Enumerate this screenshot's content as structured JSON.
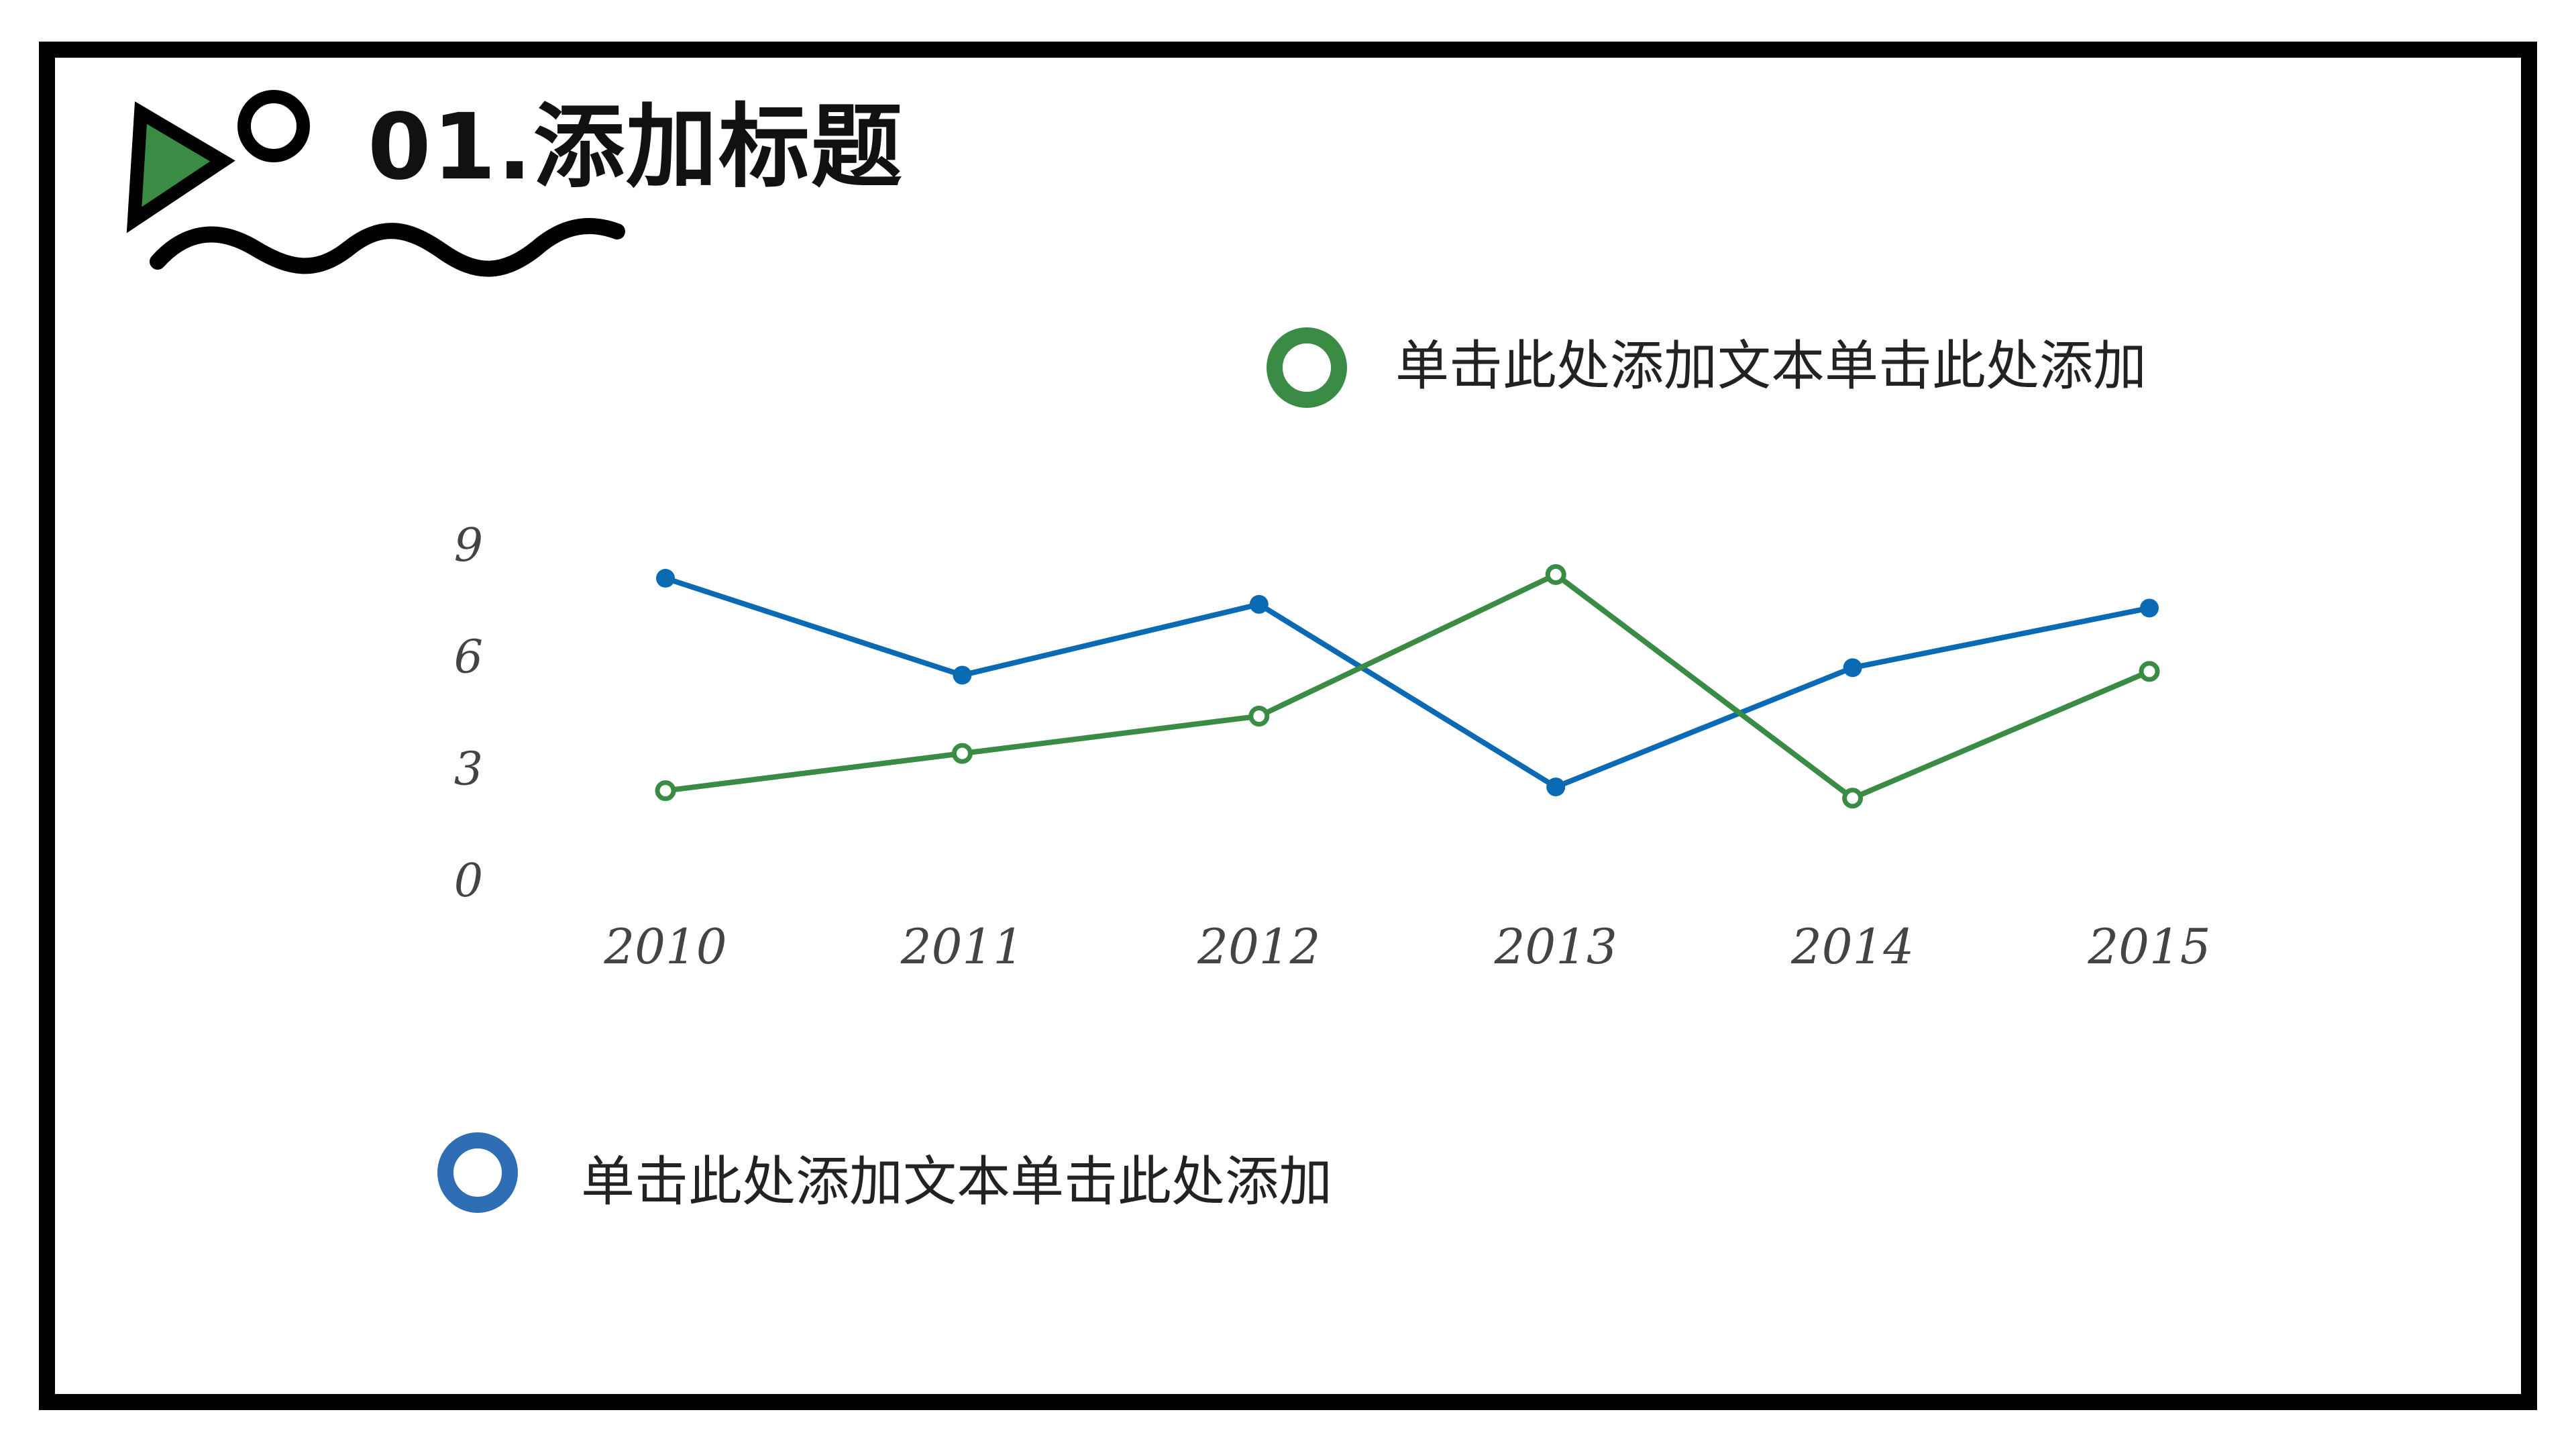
{
  "slide": {
    "title": "01.添加标题",
    "legend_green_text": "单击此处添加文本单击此处添加",
    "legend_blue_text": "单击此处添加文本单击此处添加"
  },
  "colors": {
    "frame": "#000000",
    "accent_green": "#3a8b44",
    "accent_blue": "#0b6ab4",
    "legend_blue_ring": "#2f6db5"
  },
  "icons": [
    "play-triangle-icon",
    "circle-icon",
    "wave-icon"
  ],
  "chart_data": {
    "type": "line",
    "categories": [
      "2010",
      "2011",
      "2012",
      "2013",
      "2014",
      "2015"
    ],
    "y_ticks": [
      "0",
      "3",
      "6",
      "9"
    ],
    "ylim": [
      0,
      9
    ],
    "grid": false,
    "series": [
      {
        "color": "#0b6ab4",
        "marker": "filled",
        "values": [
          8.1,
          5.5,
          7.4,
          2.5,
          5.7,
          7.3
        ]
      },
      {
        "color": "#3a8b44",
        "marker": "hollow",
        "values": [
          2.4,
          3.4,
          4.4,
          8.2,
          2.2,
          5.6
        ]
      }
    ]
  }
}
